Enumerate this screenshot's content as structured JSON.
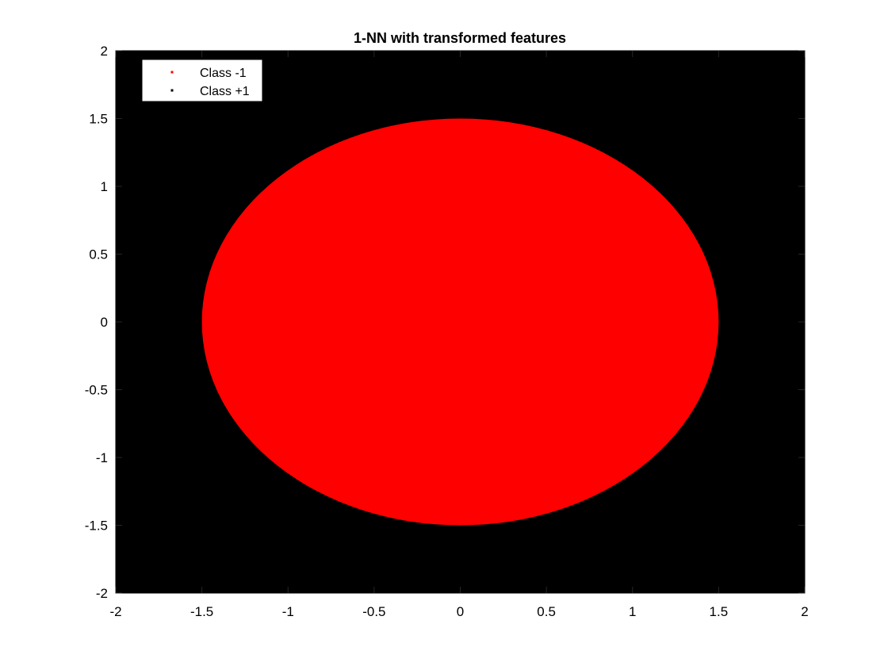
{
  "chart_data": {
    "type": "scatter",
    "title": "1-NN with transformed features",
    "xlabel": "",
    "ylabel": "",
    "xlim": [
      -2,
      2
    ],
    "ylim": [
      -2,
      2
    ],
    "xticks": [
      -2,
      -1.5,
      -1,
      -0.5,
      0,
      0.5,
      1,
      1.5,
      2
    ],
    "yticks": [
      -2,
      -1.5,
      -1,
      -0.5,
      0,
      0.5,
      1,
      1.5,
      2
    ],
    "xtick_labels": [
      "-2",
      "-1.5",
      "-1",
      "-0.5",
      "0",
      "0.5",
      "1",
      "1.5",
      "2"
    ],
    "ytick_labels": [
      "-2",
      "-1.5",
      "-1",
      "-0.5",
      "0",
      "0.5",
      "1",
      "1.5",
      "2"
    ],
    "grid": false,
    "legend_position": "top-left",
    "series": [
      {
        "name": "Class -1",
        "color": "#ff0000",
        "region": {
          "shape": "circle",
          "center": [
            0,
            0
          ],
          "radius": 1.5
        }
      },
      {
        "name": "Class +1",
        "color": "#000000",
        "region": {
          "shape": "outside-circle",
          "center": [
            0,
            0
          ],
          "radius": 1.5
        }
      }
    ]
  }
}
